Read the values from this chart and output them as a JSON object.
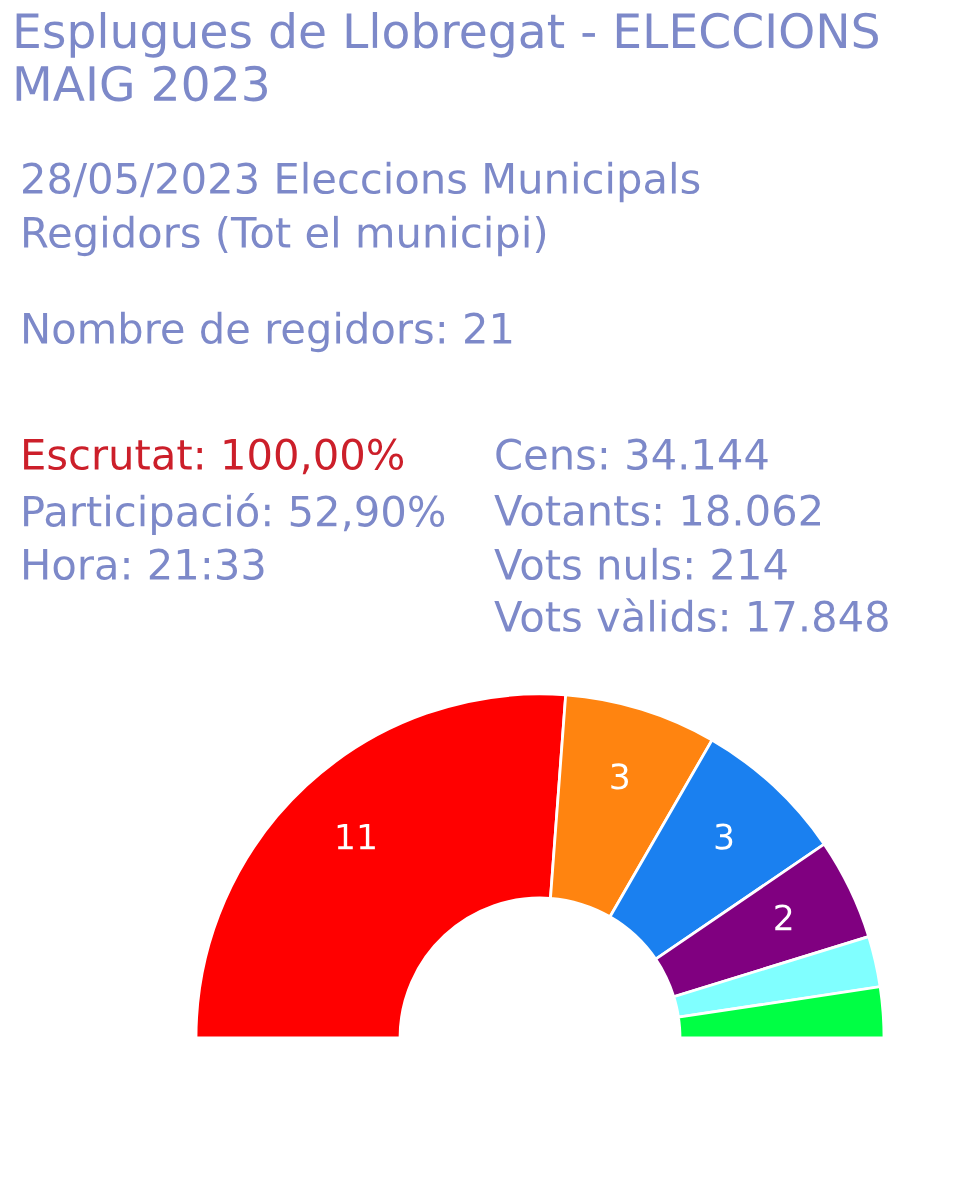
{
  "chart_data": {
    "type": "donut",
    "title": "Esplugues de Llobregat - ELECCIONS MAIG 2023",
    "subtitle": "28/05/2023 Eleccions Municipals",
    "annotations": [
      "Regidors (Tot el municipi)",
      "Nombre de regidors: 21",
      "Escrutat: 100,00%",
      "Participació: 52,90%",
      "Hora: 21:33",
      "Cens: 34.144",
      "Votants: 18.062",
      "Vots nuls: 214",
      "Vots vàlids: 17.848"
    ],
    "categories": [
      null,
      null,
      null,
      null,
      null,
      null
    ],
    "values": [
      11,
      3,
      3,
      2,
      1,
      1
    ],
    "colors": [
      "#ff0000",
      "#ff8410",
      "#1a80f0",
      "#800080",
      "#80ffff",
      "#00ff44"
    ],
    "value_labels": [
      "11",
      "3",
      "3",
      "2",
      null,
      null
    ]
  }
}
